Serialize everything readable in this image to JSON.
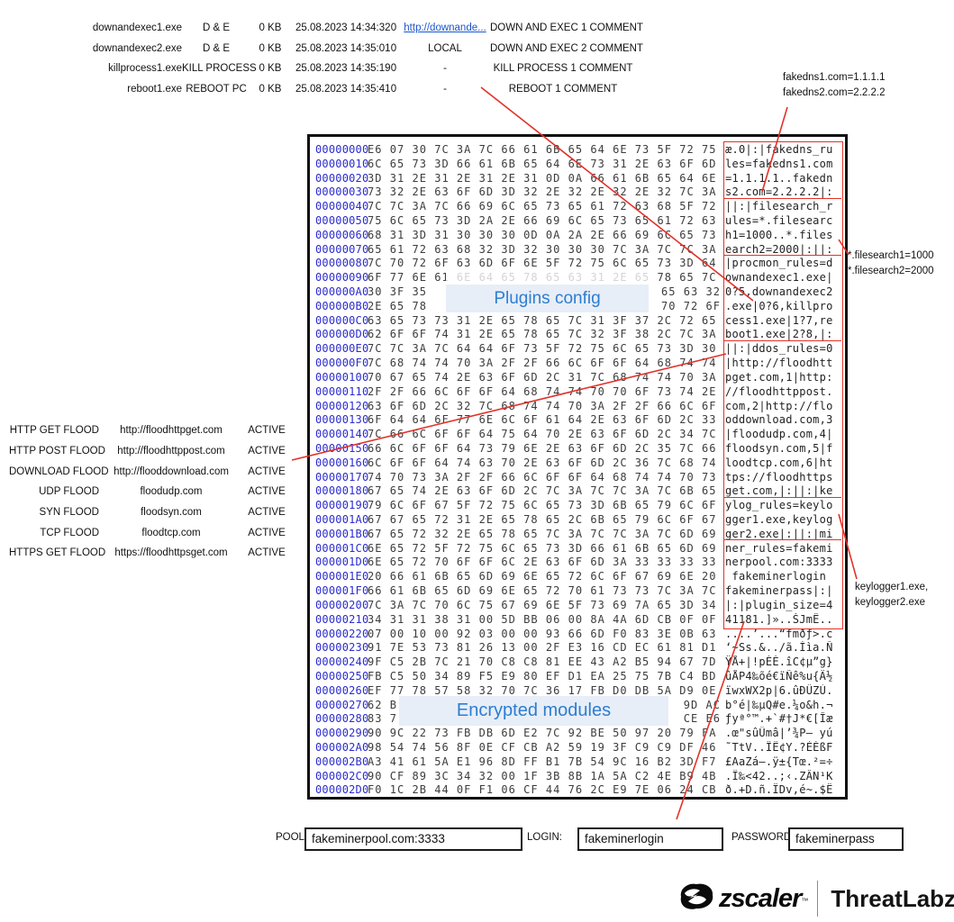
{
  "top_table": {
    "rows": [
      {
        "name": "downandexec1.exe",
        "type": "D & E",
        "size": "0 KB",
        "datetime": "25.08.2023 14:34:32",
        "zero": "0",
        "target": "http://downande...",
        "target_is_link": true,
        "comment": "DOWN AND EXEC 1 COMMENT"
      },
      {
        "name": "downandexec2.exe",
        "type": "D & E",
        "size": "0 KB",
        "datetime": "25.08.2023 14:35:01",
        "zero": "0",
        "target": "LOCAL",
        "target_is_link": false,
        "comment": "DOWN AND EXEC 2 COMMENT"
      },
      {
        "name": "killprocess1.exe",
        "type": "KILL PROCESS",
        "size": "0 KB",
        "datetime": "25.08.2023 14:35:19",
        "zero": "0",
        "target": "-",
        "target_is_link": false,
        "comment": "KILL PROCESS 1 COMMENT"
      },
      {
        "name": "reboot1.exe",
        "type": "REBOOT PC",
        "size": "0 KB",
        "datetime": "25.08.2023 14:35:41",
        "zero": "0",
        "target": "-",
        "target_is_link": false,
        "comment": "REBOOT 1 COMMENT"
      }
    ]
  },
  "notes": {
    "fakedns": {
      "lines": [
        "fakedns1.com=1.1.1.1",
        "fakedns2.com=2.2.2.2"
      ]
    },
    "filesearch": {
      "lines": [
        "*.filesearch1=1000",
        "*.filesearch2=2000"
      ]
    },
    "keylogger": {
      "lines": [
        "keylogger1.exe,",
        "keylogger2.exe"
      ]
    }
  },
  "overlays": {
    "plugins_label": "Plugins config",
    "encrypted_label": "Encrypted modules"
  },
  "flood_table": {
    "rows": [
      {
        "plugin": "HTTP GET FLOOD",
        "url": "http://floodhttpget.com",
        "status": "ACTIVE"
      },
      {
        "plugin": "HTTP POST FLOOD",
        "url": "http://floodhttppost.com",
        "status": "ACTIVE"
      },
      {
        "plugin": "DOWNLOAD FLOOD",
        "url": "http://flooddownload.com",
        "status": "ACTIVE"
      },
      {
        "plugin": "UDP FLOOD",
        "url": "floodudp.com",
        "status": "ACTIVE"
      },
      {
        "plugin": "SYN FLOOD",
        "url": "floodsyn.com",
        "status": "ACTIVE"
      },
      {
        "plugin": "TCP FLOOD",
        "url": "floodtcp.com",
        "status": "ACTIVE"
      },
      {
        "plugin": "HTTPS GET FLOOD",
        "url": "https://floodhttpsget.com",
        "status": "ACTIVE"
      }
    ]
  },
  "hex_viewer": {
    "rows": [
      {
        "offset": "00000000",
        "hex": "E6 07 30 7C 3A 7C 66 61 6B 65 64 6E 73 5F 72 75",
        "ascii": "æ.0|:|fakedns_ru"
      },
      {
        "offset": "00000010",
        "hex": "6C 65 73 3D 66 61 6B 65 64 6E 73 31 2E 63 6F 6D",
        "ascii": "les=fakedns1.com"
      },
      {
        "offset": "00000020",
        "hex": "3D 31 2E 31 2E 31 2E 31 0D 0A 66 61 6B 65 64 6E",
        "ascii": "=1.1.1.1..fakedn"
      },
      {
        "offset": "00000030",
        "hex": "73 32 2E 63 6F 6D 3D 32 2E 32 2E 32 2E 32 7C 3A",
        "ascii": "s2.com=2.2.2.2|:"
      },
      {
        "offset": "00000040",
        "hex": "7C 7C 3A 7C 66 69 6C 65 73 65 61 72 63 68 5F 72",
        "ascii": "||:|filesearch_r"
      },
      {
        "offset": "00000050",
        "hex": "75 6C 65 73 3D 2A 2E 66 69 6C 65 73 65 61 72 63",
        "ascii": "ules=*.filesearc"
      },
      {
        "offset": "00000060",
        "hex": "68 31 3D 31 30 30 30 0D 0A 2A 2E 66 69 6C 65 73",
        "ascii": "h1=1000..*.files"
      },
      {
        "offset": "00000070",
        "hex": "65 61 72 63 68 32 3D 32 30 30 30 7C 3A 7C 7C 3A",
        "ascii": "earch2=2000|:||:"
      },
      {
        "offset": "00000080",
        "hex": "7C 70 72 6F 63 6D 6F 6E 5F 72 75 6C 65 73 3D 64",
        "ascii": "|procmon_rules=d"
      },
      {
        "offset": "00000090",
        "hex": "6F 77 6E 61 6E 64 65 78 65 63 31 2E 65 78 65 7C",
        "ascii": "ownandexec1.exe|"
      },
      {
        "offset": "000000A0",
        "hex_left": "30 3F 35",
        "hex_right": "65 63 32",
        "ascii": "0?5,downandexec2"
      },
      {
        "offset": "000000B0",
        "hex_left": "2E 65 78",
        "hex_right": "70 72 6F",
        "ascii": ".exe|0?6,killpro"
      },
      {
        "offset": "000000C0",
        "hex": "63 65 73 73 31 2E 65 78 65 7C 31 3F 37 2C 72 65",
        "ascii": "cess1.exe|1?7,re"
      },
      {
        "offset": "000000D0",
        "hex": "62 6F 6F 74 31 2E 65 78 65 7C 32 3F 38 2C 7C 3A",
        "ascii": "boot1.exe|2?8,|:"
      },
      {
        "offset": "000000E0",
        "hex": "7C 7C 3A 7C 64 64 6F 73 5F 72 75 6C 65 73 3D 30",
        "ascii": "||:|ddos_rules=0"
      },
      {
        "offset": "000000F0",
        "hex": "7C 68 74 74 70 3A 2F 2F 66 6C 6F 6F 64 68 74 74",
        "ascii": "|http://floodhtt"
      },
      {
        "offset": "00000100",
        "hex": "70 67 65 74 2E 63 6F 6D 2C 31 7C 68 74 74 70 3A",
        "ascii": "pget.com,1|http:"
      },
      {
        "offset": "00000110",
        "hex": "2F 2F 66 6C 6F 6F 64 68 74 74 70 70 6F 73 74 2E",
        "ascii": "//floodhttppost."
      },
      {
        "offset": "00000120",
        "hex": "63 6F 6D 2C 32 7C 68 74 74 70 3A 2F 2F 66 6C 6F",
        "ascii": "com,2|http://flo"
      },
      {
        "offset": "00000130",
        "hex": "6F 64 64 6F 77 6E 6C 6F 61 64 2E 63 6F 6D 2C 33",
        "ascii": "oddownload.com,3"
      },
      {
        "offset": "00000140",
        "hex": "7C 66 6C 6F 6F 64 75 64 70 2E 63 6F 6D 2C 34 7C",
        "ascii": "|floodudp.com,4|"
      },
      {
        "offset": "00000150",
        "hex": "66 6C 6F 6F 64 73 79 6E 2E 63 6F 6D 2C 35 7C 66",
        "ascii": "floodsyn.com,5|f"
      },
      {
        "offset": "00000160",
        "hex": "6C 6F 6F 64 74 63 70 2E 63 6F 6D 2C 36 7C 68 74",
        "ascii": "loodtcp.com,6|ht"
      },
      {
        "offset": "00000170",
        "hex": "74 70 73 3A 2F 2F 66 6C 6F 6F 64 68 74 74 70 73",
        "ascii": "tps://floodhttps"
      },
      {
        "offset": "00000180",
        "hex": "67 65 74 2E 63 6F 6D 2C 7C 3A 7C 7C 3A 7C 6B 65",
        "ascii": "get.com,|:||:|ke"
      },
      {
        "offset": "00000190",
        "hex": "79 6C 6F 67 5F 72 75 6C 65 73 3D 6B 65 79 6C 6F",
        "ascii": "ylog_rules=keylo"
      },
      {
        "offset": "000001A0",
        "hex": "67 67 65 72 31 2E 65 78 65 2C 6B 65 79 6C 6F 67",
        "ascii": "gger1.exe,keylog"
      },
      {
        "offset": "000001B0",
        "hex": "67 65 72 32 2E 65 78 65 7C 3A 7C 7C 3A 7C 6D 69",
        "ascii": "ger2.exe|:||:|mi"
      },
      {
        "offset": "000001C0",
        "hex": "6E 65 72 5F 72 75 6C 65 73 3D 66 61 6B 65 6D 69",
        "ascii": "ner_rules=fakemi"
      },
      {
        "offset": "000001D0",
        "hex": "6E 65 72 70 6F 6F 6C 2E 63 6F 6D 3A 33 33 33 33",
        "ascii": "nerpool.com:3333"
      },
      {
        "offset": "000001E0",
        "hex": "20 66 61 6B 65 6D 69 6E 65 72 6C 6F 67 69 6E 20",
        "ascii": " fakeminerlogin "
      },
      {
        "offset": "000001F0",
        "hex": "66 61 6B 65 6D 69 6E 65 72 70 61 73 73 7C 3A 7C",
        "ascii": "fakeminerpass|:|"
      },
      {
        "offset": "00000200",
        "hex": "7C 3A 7C 70 6C 75 67 69 6E 5F 73 69 7A 65 3D 34",
        "ascii": "|:|plugin_size=4"
      },
      {
        "offset": "00000210",
        "hex": "34 31 31 38 31 00 5D BB 06 00 8A 4A 6D CB 0F 0F",
        "ascii": "41181.]»..ŠJmË.."
      },
      {
        "offset": "00000220",
        "hex": "07 00 10 00 92 03 00 00 93 66 6D F0 83 3E 0B 63",
        "ascii": "....’...“fmðƒ>.c"
      },
      {
        "offset": "00000230",
        "hex": "91 7E 53 73 81 26 13 00 2F E3 16 CD EC 61 81 D1",
        "ascii": "‘~Ss.&../ã.Íìa.Ñ"
      },
      {
        "offset": "00000240",
        "hex": "9F C5 2B 7C 21 70 C8 C8 81 EE 43 A2 B5 94 67 7D",
        "ascii": "ŸÅ+|!pÈÈ.îC¢µ”g}"
      },
      {
        "offset": "00000250",
        "hex": "FB C5 50 34 89 F5 E9 80 EF D1 EA 25 75 7B C4 BD",
        "ascii": "ûÅP4‰õé€ïÑê%u{Ä½"
      },
      {
        "offset": "00000260",
        "hex": "EF 77 78 57 58 32 70 7C 36 17 FB D0 DB 5A D9 0E",
        "ascii": "ïwxWX2p|6.ûÐÛZÙ."
      },
      {
        "offset": "00000270",
        "hex_left": "62 B",
        "hex_right": "9D AC",
        "ascii": "b°é|‰µQ#e.¼o&h.¬"
      },
      {
        "offset": "00000280",
        "hex_left": "83 7",
        "hex_right": "CE E6",
        "ascii": "ƒyª°™.+`#†J*€[Îæ"
      },
      {
        "offset": "00000290",
        "hex": "90 9C 22 73 FB DB 6D E2 7C 92 BE 50 97 20 79 FA",
        "ascii": ".œ\"sûÛmâ|’¾P— yú"
      },
      {
        "offset": "000002A0",
        "hex": "98 54 74 56 8F 0E CF CB A2 59 19 3F C9 C9 DF 46",
        "ascii": "˜TtV..ÏË¢Y.?ÉÉßF"
      },
      {
        "offset": "000002B0",
        "hex": "A3 41 61 5A E1 96 8D FF B1 7B 54 9C 16 B2 3D F7",
        "ascii": "£AaZá–.ÿ±{Tœ.²=÷"
      },
      {
        "offset": "000002C0",
        "hex": "90 CF 89 3C 34 32 00 1F 3B 8B 1A 5A C2 4E B9 4B",
        "ascii": ".Ï‰<42..;‹.ZÂN¹K"
      },
      {
        "offset": "000002D0",
        "hex": "F0 1C 2B 44 0F F1 06 CF 44 76 2C E9 7E 06 24 CB",
        "ascii": "ð.+D.ñ.ÏDv,é~.$Ë"
      }
    ]
  },
  "miner_fields": {
    "pool_label": "POOL:",
    "pool_value": "fakeminerpool.com:3333",
    "login_label": "LOGIN:",
    "login_value": "fakeminerlogin",
    "password_label": "PASSWORD:",
    "password_value": "fakeminerpass"
  },
  "branding": {
    "zscaler": "zscaler",
    "tm": "™",
    "threatlabz": "ThreatLabz"
  },
  "colors": {
    "offset_blue": "#2b2bd0",
    "annotation_red": "#e23229",
    "overlay_blue_text": "#2d7dd2",
    "overlay_bg": "#e7eef7",
    "link_blue": "#1a56cc"
  }
}
